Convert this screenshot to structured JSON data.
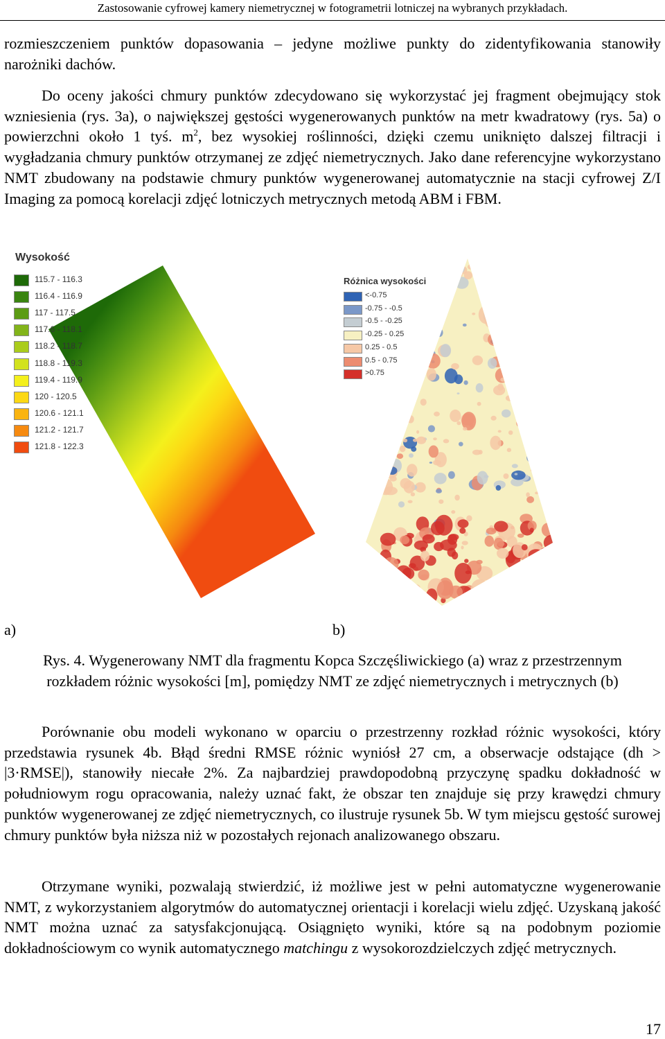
{
  "header": {
    "running_title": "Zastosowanie cyfrowej kamery niemetrycznej w fotogrametrii lotniczej na wybranych przykładach."
  },
  "paragraphs": {
    "p1": "rozmieszczeniem punktów dopasowania – jedyne możliwe punkty do zidentyfikowania stanowiły narożniki dachów.",
    "p2_before": "Do oceny jakości chmury punktów zdecydowano się wykorzystać jej fragment obejmujący stok wzniesienia (rys. 3a), o największej gęstości wygenerowanych punktów na metr kwadratowy (rys. 5a) o powierzchni około 1 tyś. m",
    "p2_sup": "2",
    "p2_after": ", bez wysokiej roślinności, dzięki czemu uniknięto dalszej filtracji i wygładzania chmury punktów otrzymanej ze zdjęć niemetrycznych. Jako dane referencyjne wykorzystano NMT zbudowany na podstawie chmury punktów wygenerowanej automatycznie na stacji cyfrowej Z/I Imaging za pomocą korelacji zdjęć lotniczych metrycznych metodą ABM i FBM.",
    "p3": "Porównanie obu modeli wykonano w oparciu o przestrzenny rozkład różnic wysokości, który przedstawia rysunek 4b. Błąd średni RMSE różnic wyniósł 27 cm, a obserwacje odstające (dh > |3·RMSE|), stanowiły niecałe 2%. Za najbardziej prawdopodobną przyczynę spadku dokładność w południowym rogu opracowania, należy uznać fakt, że obszar ten znajduje się przy krawędzi chmury punktów wygenerowanej ze zdjęć niemetrycznych, co ilustruje rysunek 5b. W tym miejscu gęstość surowej chmury punktów była niższa niż w pozostałych rejonach analizowanego obszaru.",
    "p4_before": "Otrzymane wyniki, pozwalają stwierdzić, iż możliwe jest w pełni automatyczne wygenerowanie NMT, z wykorzystaniem algorytmów do automatycznej orientacji i korelacji wielu zdjęć. Uzyskaną jakość NMT można uznać za satysfakcjonującą. Osiągnięto wyniki, które są na podobnym poziomie dokładnościowym co wynik automatycznego ",
    "p4_italic": "matchingu",
    "p4_after": " z wysokorozdzielczych zdjęć metrycznych."
  },
  "figure": {
    "panel_a": {
      "label": "a)",
      "legend_title": "Wysokość",
      "legend": [
        {
          "range": "115.7 - 116.3",
          "color": "#1e6a08"
        },
        {
          "range": "116.4 - 116.9",
          "color": "#3a8410"
        },
        {
          "range": "117 - 117.5",
          "color": "#5c9c14"
        },
        {
          "range": "117.6 - 118.1",
          "color": "#82b41a"
        },
        {
          "range": "118.2 - 118.7",
          "color": "#aacc1c"
        },
        {
          "range": "118.8 - 119.3",
          "color": "#d2e21e"
        },
        {
          "range": "119.4 - 119.9",
          "color": "#f4f01c"
        },
        {
          "range": "120 - 120.5",
          "color": "#fcd814"
        },
        {
          "range": "120.6 - 121.1",
          "color": "#fab410"
        },
        {
          "range": "121.2 - 121.7",
          "color": "#f68a10"
        },
        {
          "range": "121.8 - 122.3",
          "color": "#f04c10"
        }
      ]
    },
    "panel_b": {
      "label": "b)",
      "legend_title": "Różnica wysokości",
      "background_color": "#f7f0c2",
      "legend": [
        {
          "range": "<-0.75",
          "color": "#2f63b4"
        },
        {
          "range": "-0.75 - -0.5",
          "color": "#7b98c8"
        },
        {
          "range": "-0.5 - -0.25",
          "color": "#c4cdd2"
        },
        {
          "range": "-0.25 - 0.25",
          "color": "#f7f0c2"
        },
        {
          "range": "0.25 - 0.5",
          "color": "#f6c8a6"
        },
        {
          "range": "0.5 - 0.75",
          "color": "#ec8c70"
        },
        {
          "range": ">0.75",
          "color": "#d4302a"
        }
      ]
    },
    "caption": "Rys. 4. Wygenerowany NMT dla fragmentu Kopca Szczęśliwickiego (a) wraz z przestrzennym rozkładem różnic wysokości [m], pomiędzy NMT ze zdjęć niemetrycznych i metrycznych (b)"
  },
  "page_number": "17"
}
